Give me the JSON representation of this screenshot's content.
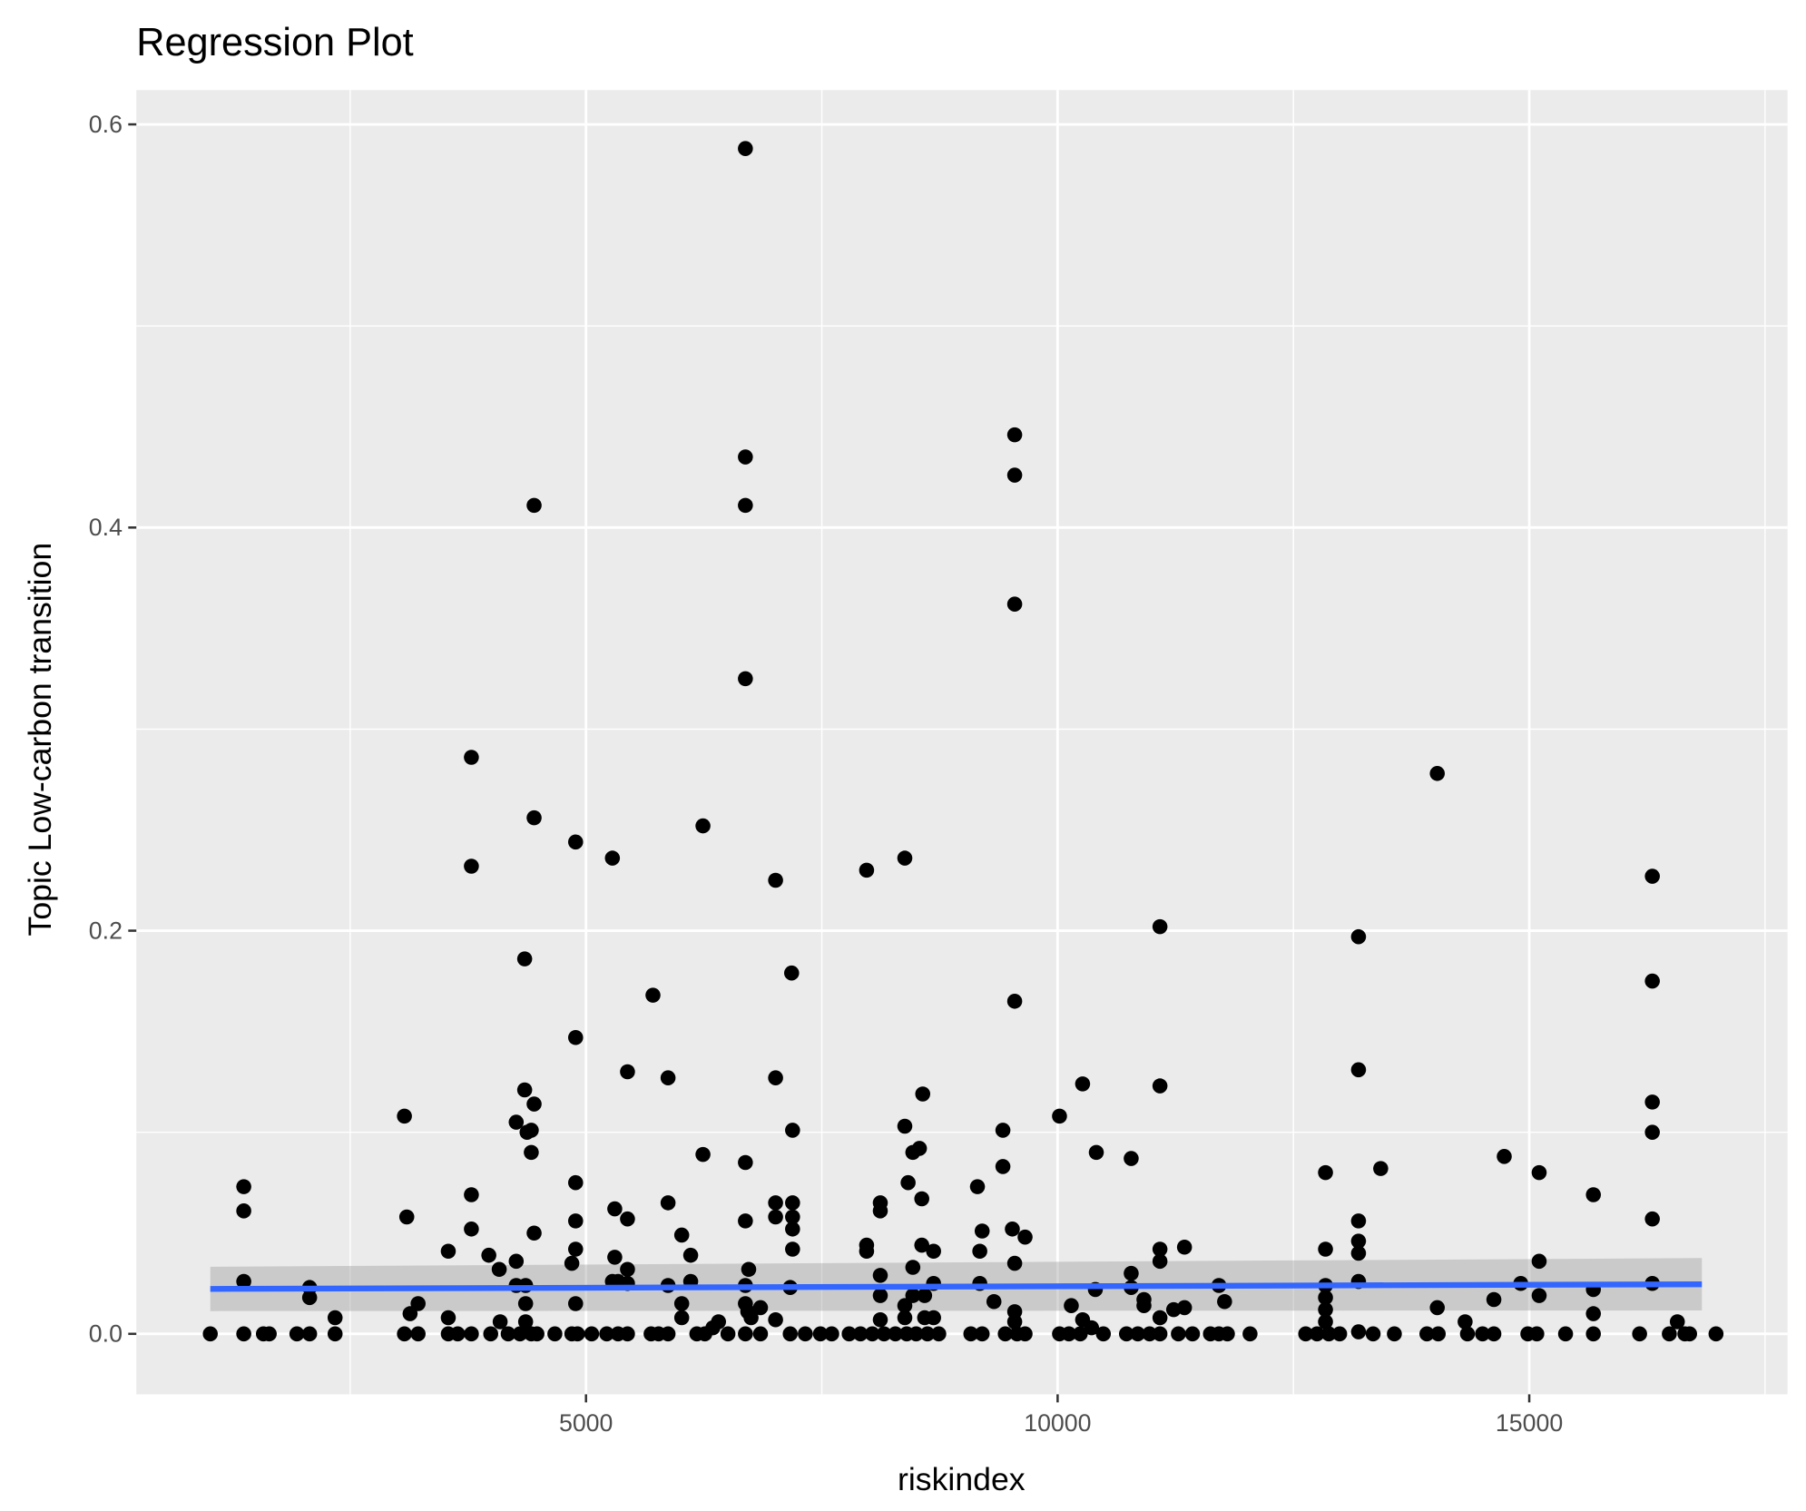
{
  "chart_data": {
    "type": "scatter",
    "title": "Regression Plot",
    "xlabel": "riskindex",
    "ylabel": "Topic Low-carbon transition",
    "xlim": [
      233,
      17738
    ],
    "ylim": [
      -0.03,
      0.617
    ],
    "x_major_ticks": [
      5000,
      10000,
      15000
    ],
    "x_tick_labels": [
      "5000",
      "10000",
      "15000"
    ],
    "x_minor_ticks": [
      2500,
      7500,
      12500,
      17500
    ],
    "y_major_ticks": [
      0.0,
      0.2,
      0.4,
      0.6
    ],
    "y_tick_labels": [
      "0.0",
      "0.2",
      "0.4",
      "0.6"
    ],
    "y_minor_ticks": [
      0.1,
      0.3,
      0.5
    ],
    "grid": true,
    "background": "#ebebeb",
    "point_color": "#000000",
    "line_color": "#3366ff",
    "band_color": "#999999",
    "regression": {
      "x": [
        1017,
        16830
      ],
      "y": [
        0.0223,
        0.0246
      ],
      "ci_halfwidth": [
        0.011,
        0.013
      ]
    },
    "points": [
      [
        1017,
        0
      ],
      [
        1372,
        0.073
      ],
      [
        1372,
        0.061
      ],
      [
        1372,
        0.026
      ],
      [
        1372,
        0
      ],
      [
        1580,
        0
      ],
      [
        1642,
        0
      ],
      [
        1935,
        0
      ],
      [
        2070,
        0
      ],
      [
        2070,
        0.023
      ],
      [
        2070,
        0.018
      ],
      [
        2340,
        0.008
      ],
      [
        2340,
        0
      ],
      [
        3075,
        0.108
      ],
      [
        3100,
        0.058
      ],
      [
        3135,
        0.01
      ],
      [
        3220,
        0.015
      ],
      [
        3075,
        0
      ],
      [
        3220,
        0
      ],
      [
        3540,
        0.041
      ],
      [
        3540,
        0.008
      ],
      [
        3540,
        0
      ],
      [
        3640,
        0
      ],
      [
        3785,
        0
      ],
      [
        3785,
        0.286
      ],
      [
        3785,
        0.232
      ],
      [
        3785,
        0.069
      ],
      [
        3785,
        0.052
      ],
      [
        3970,
        0.039
      ],
      [
        4080,
        0.032
      ],
      [
        4090,
        0.006
      ],
      [
        3990,
        0
      ],
      [
        4175,
        0
      ],
      [
        4260,
        0.036
      ],
      [
        4260,
        0.105
      ],
      [
        4260,
        0.024
      ],
      [
        4350,
        0.186
      ],
      [
        4350,
        0.121
      ],
      [
        4375,
        0.1
      ],
      [
        4420,
        0.101
      ],
      [
        4420,
        0.09
      ],
      [
        4450,
        0.411
      ],
      [
        4450,
        0.256
      ],
      [
        4450,
        0.114
      ],
      [
        4450,
        0.05
      ],
      [
        4360,
        0.024
      ],
      [
        4360,
        0.015
      ],
      [
        4360,
        0.006
      ],
      [
        4300,
        0
      ],
      [
        4420,
        0
      ],
      [
        4480,
        0
      ],
      [
        4670,
        0
      ],
      [
        4890,
        0.244
      ],
      [
        4890,
        0.147
      ],
      [
        4890,
        0.075
      ],
      [
        4890,
        0.056
      ],
      [
        4890,
        0.042
      ],
      [
        4850,
        0.035
      ],
      [
        4890,
        0.015
      ],
      [
        4850,
        0
      ],
      [
        4910,
        0
      ],
      [
        5060,
        0
      ],
      [
        5280,
        0.236
      ],
      [
        5305,
        0.062
      ],
      [
        5305,
        0.038
      ],
      [
        5280,
        0.026
      ],
      [
        5340,
        0.026
      ],
      [
        5440,
        0.13
      ],
      [
        5440,
        0.057
      ],
      [
        5440,
        0.032
      ],
      [
        5440,
        0.025
      ],
      [
        5220,
        0
      ],
      [
        5340,
        0
      ],
      [
        5440,
        0
      ],
      [
        5710,
        0.168
      ],
      [
        5690,
        0
      ],
      [
        5770,
        0
      ],
      [
        5870,
        0.127
      ],
      [
        5870,
        0.065
      ],
      [
        5870,
        0.024
      ],
      [
        5870,
        0
      ],
      [
        6015,
        0.049
      ],
      [
        6015,
        0.015
      ],
      [
        6015,
        0.008
      ],
      [
        6110,
        0.039
      ],
      [
        6110,
        0.026
      ],
      [
        6240,
        0.252
      ],
      [
        6240,
        0.089
      ],
      [
        6175,
        0
      ],
      [
        6260,
        0
      ],
      [
        6345,
        0.003
      ],
      [
        6405,
        0.006
      ],
      [
        6505,
        0
      ],
      [
        6690,
        0.588
      ],
      [
        6690,
        0.435
      ],
      [
        6690,
        0.411
      ],
      [
        6690,
        0.325
      ],
      [
        6690,
        0.085
      ],
      [
        6690,
        0.056
      ],
      [
        6725,
        0.032
      ],
      [
        6690,
        0.024
      ],
      [
        6690,
        0.015
      ],
      [
        6715,
        0.011
      ],
      [
        6750,
        0.008
      ],
      [
        6850,
        0.013
      ],
      [
        6690,
        0
      ],
      [
        6850,
        0
      ],
      [
        7010,
        0.225
      ],
      [
        7010,
        0.127
      ],
      [
        7010,
        0.065
      ],
      [
        7010,
        0.058
      ],
      [
        7010,
        0.007
      ],
      [
        7180,
        0.179
      ],
      [
        7190,
        0.101
      ],
      [
        7190,
        0.065
      ],
      [
        7190,
        0.058
      ],
      [
        7190,
        0.052
      ],
      [
        7190,
        0.042
      ],
      [
        7165,
        0.023
      ],
      [
        7165,
        0
      ],
      [
        7325,
        0
      ],
      [
        7485,
        0
      ],
      [
        7605,
        0
      ],
      [
        7790,
        0
      ],
      [
        7975,
        0.23
      ],
      [
        7975,
        0.044
      ],
      [
        7975,
        0.041
      ],
      [
        8120,
        0.065
      ],
      [
        8120,
        0.061
      ],
      [
        8120,
        0.029
      ],
      [
        8120,
        0.019
      ],
      [
        8120,
        0.007
      ],
      [
        7910,
        0
      ],
      [
        8035,
        0
      ],
      [
        8160,
        0
      ],
      [
        8380,
        0.236
      ],
      [
        8380,
        0.103
      ],
      [
        8415,
        0.075
      ],
      [
        8465,
        0.09
      ],
      [
        8535,
        0.092
      ],
      [
        8560,
        0.067
      ],
      [
        8560,
        0.044
      ],
      [
        8465,
        0.033
      ],
      [
        8465,
        0.019
      ],
      [
        8590,
        0.019
      ],
      [
        8570,
        0.119
      ],
      [
        8685,
        0.041
      ],
      [
        8685,
        0.025
      ],
      [
        8685,
        0.008
      ],
      [
        8590,
        0.008
      ],
      [
        8380,
        0.014
      ],
      [
        8380,
        0.008
      ],
      [
        8280,
        0
      ],
      [
        8400,
        0
      ],
      [
        8500,
        0
      ],
      [
        8620,
        0
      ],
      [
        8740,
        0
      ],
      [
        9150,
        0.073
      ],
      [
        9200,
        0.051
      ],
      [
        9175,
        0.041
      ],
      [
        9175,
        0.025
      ],
      [
        9325,
        0.016
      ],
      [
        9080,
        0
      ],
      [
        9200,
        0
      ],
      [
        9420,
        0.101
      ],
      [
        9420,
        0.083
      ],
      [
        9545,
        0.446
      ],
      [
        9545,
        0.426
      ],
      [
        9545,
        0.362
      ],
      [
        9545,
        0.165
      ],
      [
        9520,
        0.052
      ],
      [
        9545,
        0.035
      ],
      [
        9545,
        0.011
      ],
      [
        9545,
        0.006
      ],
      [
        9445,
        0
      ],
      [
        9570,
        0
      ],
      [
        9655,
        0
      ],
      [
        9655,
        0.048
      ],
      [
        10020,
        0.108
      ],
      [
        10020,
        0
      ],
      [
        10120,
        0
      ],
      [
        10145,
        0.014
      ],
      [
        10265,
        0.124
      ],
      [
        10410,
        0.09
      ],
      [
        10400,
        0.022
      ],
      [
        10265,
        0.007
      ],
      [
        10360,
        0.003
      ],
      [
        10240,
        0
      ],
      [
        10485,
        0
      ],
      [
        10780,
        0.087
      ],
      [
        10780,
        0.03
      ],
      [
        10780,
        0.023
      ],
      [
        10915,
        0.017
      ],
      [
        10915,
        0.014
      ],
      [
        10730,
        0
      ],
      [
        10850,
        0
      ],
      [
        10975,
        0
      ],
      [
        11085,
        0.202
      ],
      [
        11085,
        0.123
      ],
      [
        11085,
        0.042
      ],
      [
        11085,
        0.036
      ],
      [
        11085,
        0.008
      ],
      [
        11085,
        0
      ],
      [
        11230,
        0.012
      ],
      [
        11345,
        0.043
      ],
      [
        11345,
        0.013
      ],
      [
        11280,
        0
      ],
      [
        11430,
        0
      ],
      [
        11710,
        0.024
      ],
      [
        11770,
        0.016
      ],
      [
        11620,
        0
      ],
      [
        11710,
        0
      ],
      [
        11800,
        0
      ],
      [
        12040,
        0
      ],
      [
        12630,
        0
      ],
      [
        12750,
        0
      ],
      [
        12840,
        0.08
      ],
      [
        12840,
        0.042
      ],
      [
        12840,
        0.024
      ],
      [
        12840,
        0.018
      ],
      [
        12840,
        0.012
      ],
      [
        12840,
        0.006
      ],
      [
        12875,
        0
      ],
      [
        12990,
        0
      ],
      [
        13190,
        0.197
      ],
      [
        13190,
        0.131
      ],
      [
        13190,
        0.056
      ],
      [
        13190,
        0.046
      ],
      [
        13190,
        0.04
      ],
      [
        13190,
        0.026
      ],
      [
        13190,
        0.001
      ],
      [
        13345,
        0
      ],
      [
        13425,
        0.082
      ],
      [
        13570,
        0
      ],
      [
        13915,
        0
      ],
      [
        14035,
        0
      ],
      [
        14025,
        0.278
      ],
      [
        14025,
        0.013
      ],
      [
        14320,
        0.006
      ],
      [
        14345,
        0
      ],
      [
        14505,
        0
      ],
      [
        14625,
        0
      ],
      [
        14625,
        0.017
      ],
      [
        14735,
        0.088
      ],
      [
        14910,
        0.025
      ],
      [
        14985,
        0
      ],
      [
        15080,
        0
      ],
      [
        15105,
        0.08
      ],
      [
        15105,
        0.036
      ],
      [
        15105,
        0.019
      ],
      [
        15385,
        0
      ],
      [
        15680,
        0.069
      ],
      [
        15680,
        0.022
      ],
      [
        15680,
        0.01
      ],
      [
        15680,
        0
      ],
      [
        16170,
        0
      ],
      [
        16305,
        0.227
      ],
      [
        16305,
        0.175
      ],
      [
        16305,
        0.115
      ],
      [
        16305,
        0.1
      ],
      [
        16305,
        0.057
      ],
      [
        16305,
        0.025
      ],
      [
        16485,
        0
      ],
      [
        16570,
        0.006
      ],
      [
        16650,
        0
      ],
      [
        16700,
        0
      ],
      [
        16980,
        0
      ]
    ]
  }
}
